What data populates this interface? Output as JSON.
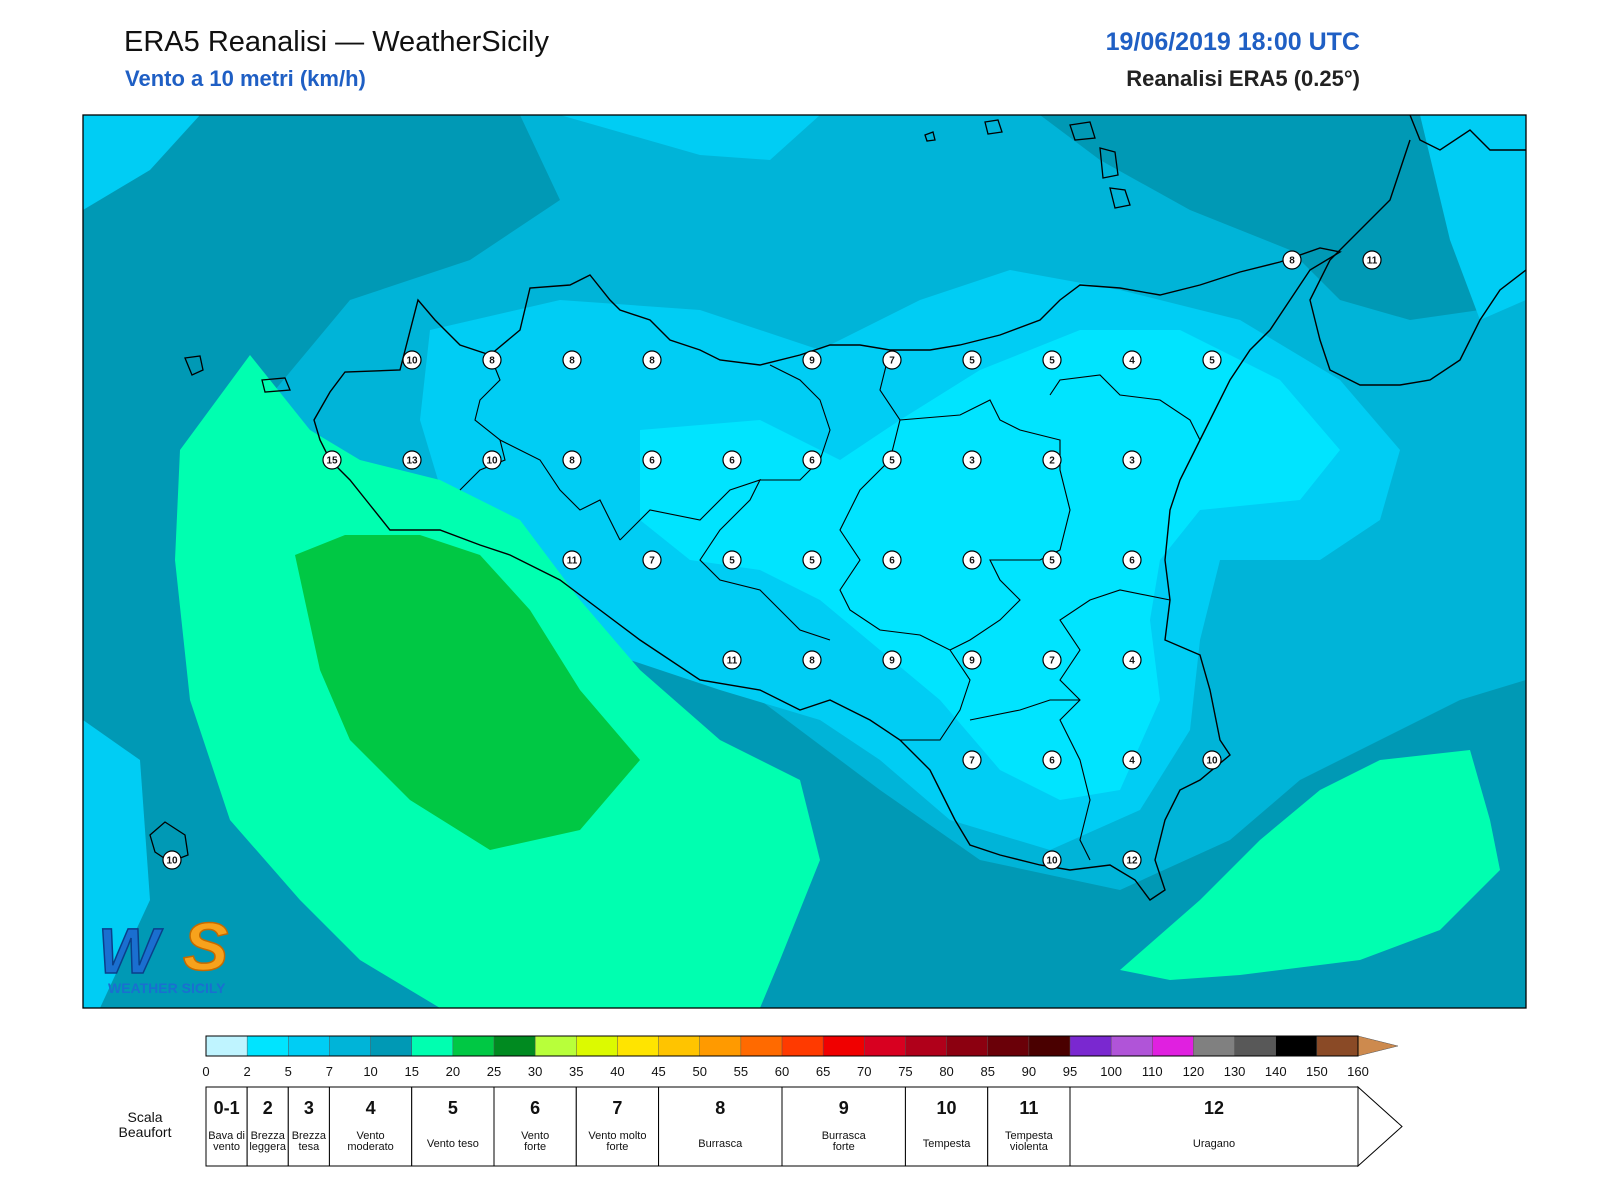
{
  "header": {
    "title": "ERA5 Reanalisi — WeatherSicily",
    "subtitle": "Vento a 10 metri (km/h)",
    "datetime": "19/06/2019 18:00 UTC",
    "source": "Reanalisi ERA5 (0.25°)"
  },
  "logo": {
    "text": "WEATHER SICILY",
    "mark": "WS"
  },
  "stations": [
    {
      "v": "8",
      "lon": 15.25,
      "lat": 38.5
    },
    {
      "v": "11",
      "lon": 15.5,
      "lat": 38.5
    },
    {
      "v": "10",
      "lon": 12.5,
      "lat": 38.25
    },
    {
      "v": "8",
      "lon": 12.75,
      "lat": 38.25
    },
    {
      "v": "8",
      "lon": 13.0,
      "lat": 38.25
    },
    {
      "v": "8",
      "lon": 13.25,
      "lat": 38.25
    },
    {
      "v": "9",
      "lon": 13.75,
      "lat": 38.25
    },
    {
      "v": "7",
      "lon": 14.0,
      "lat": 38.25
    },
    {
      "v": "5",
      "lon": 14.25,
      "lat": 38.25
    },
    {
      "v": "5",
      "lon": 14.5,
      "lat": 38.25
    },
    {
      "v": "4",
      "lon": 14.75,
      "lat": 38.25
    },
    {
      "v": "5",
      "lon": 15.0,
      "lat": 38.25
    },
    {
      "v": "15",
      "lon": 12.25,
      "lat": 38.0
    },
    {
      "v": "13",
      "lon": 12.5,
      "lat": 38.0
    },
    {
      "v": "10",
      "lon": 12.75,
      "lat": 38.0
    },
    {
      "v": "8",
      "lon": 13.0,
      "lat": 38.0
    },
    {
      "v": "6",
      "lon": 13.25,
      "lat": 38.0
    },
    {
      "v": "6",
      "lon": 13.5,
      "lat": 38.0
    },
    {
      "v": "6",
      "lon": 13.75,
      "lat": 38.0
    },
    {
      "v": "5",
      "lon": 14.0,
      "lat": 38.0
    },
    {
      "v": "3",
      "lon": 14.25,
      "lat": 38.0
    },
    {
      "v": "2",
      "lon": 14.5,
      "lat": 38.0
    },
    {
      "v": "3",
      "lon": 14.75,
      "lat": 38.0
    },
    {
      "v": "11",
      "lon": 13.0,
      "lat": 37.75
    },
    {
      "v": "7",
      "lon": 13.25,
      "lat": 37.75
    },
    {
      "v": "5",
      "lon": 13.5,
      "lat": 37.75
    },
    {
      "v": "5",
      "lon": 13.75,
      "lat": 37.75
    },
    {
      "v": "6",
      "lon": 14.0,
      "lat": 37.75
    },
    {
      "v": "6",
      "lon": 14.25,
      "lat": 37.75
    },
    {
      "v": "5",
      "lon": 14.5,
      "lat": 37.75
    },
    {
      "v": "6",
      "lon": 14.75,
      "lat": 37.75
    },
    {
      "v": "11",
      "lon": 13.5,
      "lat": 37.5
    },
    {
      "v": "8",
      "lon": 13.75,
      "lat": 37.5
    },
    {
      "v": "9",
      "lon": 14.0,
      "lat": 37.5
    },
    {
      "v": "9",
      "lon": 14.25,
      "lat": 37.5
    },
    {
      "v": "7",
      "lon": 14.5,
      "lat": 37.5
    },
    {
      "v": "4",
      "lon": 14.75,
      "lat": 37.5
    },
    {
      "v": "7",
      "lon": 14.25,
      "lat": 37.25
    },
    {
      "v": "6",
      "lon": 14.5,
      "lat": 37.25
    },
    {
      "v": "4",
      "lon": 14.75,
      "lat": 37.25
    },
    {
      "v": "10",
      "lon": 15.0,
      "lat": 37.25
    },
    {
      "v": "10",
      "lon": 11.75,
      "lat": 37.0
    },
    {
      "v": "10",
      "lon": 14.5,
      "lat": 37.0
    },
    {
      "v": "12",
      "lon": 14.75,
      "lat": 37.0
    }
  ],
  "colorbar": {
    "ticks": [
      "0",
      "2",
      "5",
      "7",
      "10",
      "15",
      "20",
      "25",
      "30",
      "35",
      "40",
      "45",
      "50",
      "55",
      "60",
      "65",
      "70",
      "75",
      "80",
      "85",
      "90",
      "95",
      "100",
      "110",
      "120",
      "130",
      "140",
      "150",
      "160"
    ],
    "colors": [
      "#bff4ff",
      "#00e4ff",
      "#00cdf4",
      "#00b4d8",
      "#0099b5",
      "#00ffb0",
      "#00c844",
      "#008a20",
      "#b8ff3a",
      "#dcfa00",
      "#ffe400",
      "#ffc400",
      "#ff9a00",
      "#ff6a00",
      "#ff3a00",
      "#f00000",
      "#d80020",
      "#b0001a",
      "#8c0010",
      "#6a0008",
      "#4a0000",
      "#7a28d0",
      "#b054d8",
      "#e020e0",
      "#808080",
      "#585858",
      "#000000",
      "#8a4a26",
      "#cd8a4e"
    ]
  },
  "beaufort": {
    "title": "Scala\nBeaufort",
    "classes": [
      {
        "n": "0-1",
        "desc": "Bava di\nvento",
        "to": 1
      },
      {
        "n": "2",
        "desc": "Brezza\nleggera",
        "to": 2
      },
      {
        "n": "3",
        "desc": "Brezza\ntesa",
        "to": 3
      },
      {
        "n": "4",
        "desc": "Vento\nmoderato",
        "to": 5
      },
      {
        "n": "5",
        "desc": "Vento teso",
        "to": 7
      },
      {
        "n": "6",
        "desc": "Vento\nforte",
        "to": 9
      },
      {
        "n": "7",
        "desc": "Vento molto\nforte",
        "to": 11
      },
      {
        "n": "8",
        "desc": "Burrasca",
        "to": 14
      },
      {
        "n": "9",
        "desc": "Burrasca\nforte",
        "to": 17
      },
      {
        "n": "10",
        "desc": "Tempesta",
        "to": 19
      },
      {
        "n": "11",
        "desc": "Tempesta\nviolenta",
        "to": 21
      },
      {
        "n": "12",
        "desc": "Uragano",
        "to": 28
      }
    ]
  },
  "colors": {
    "frame": "#000000",
    "coast": "#000000",
    "title_blue": "#1f5fc4"
  }
}
